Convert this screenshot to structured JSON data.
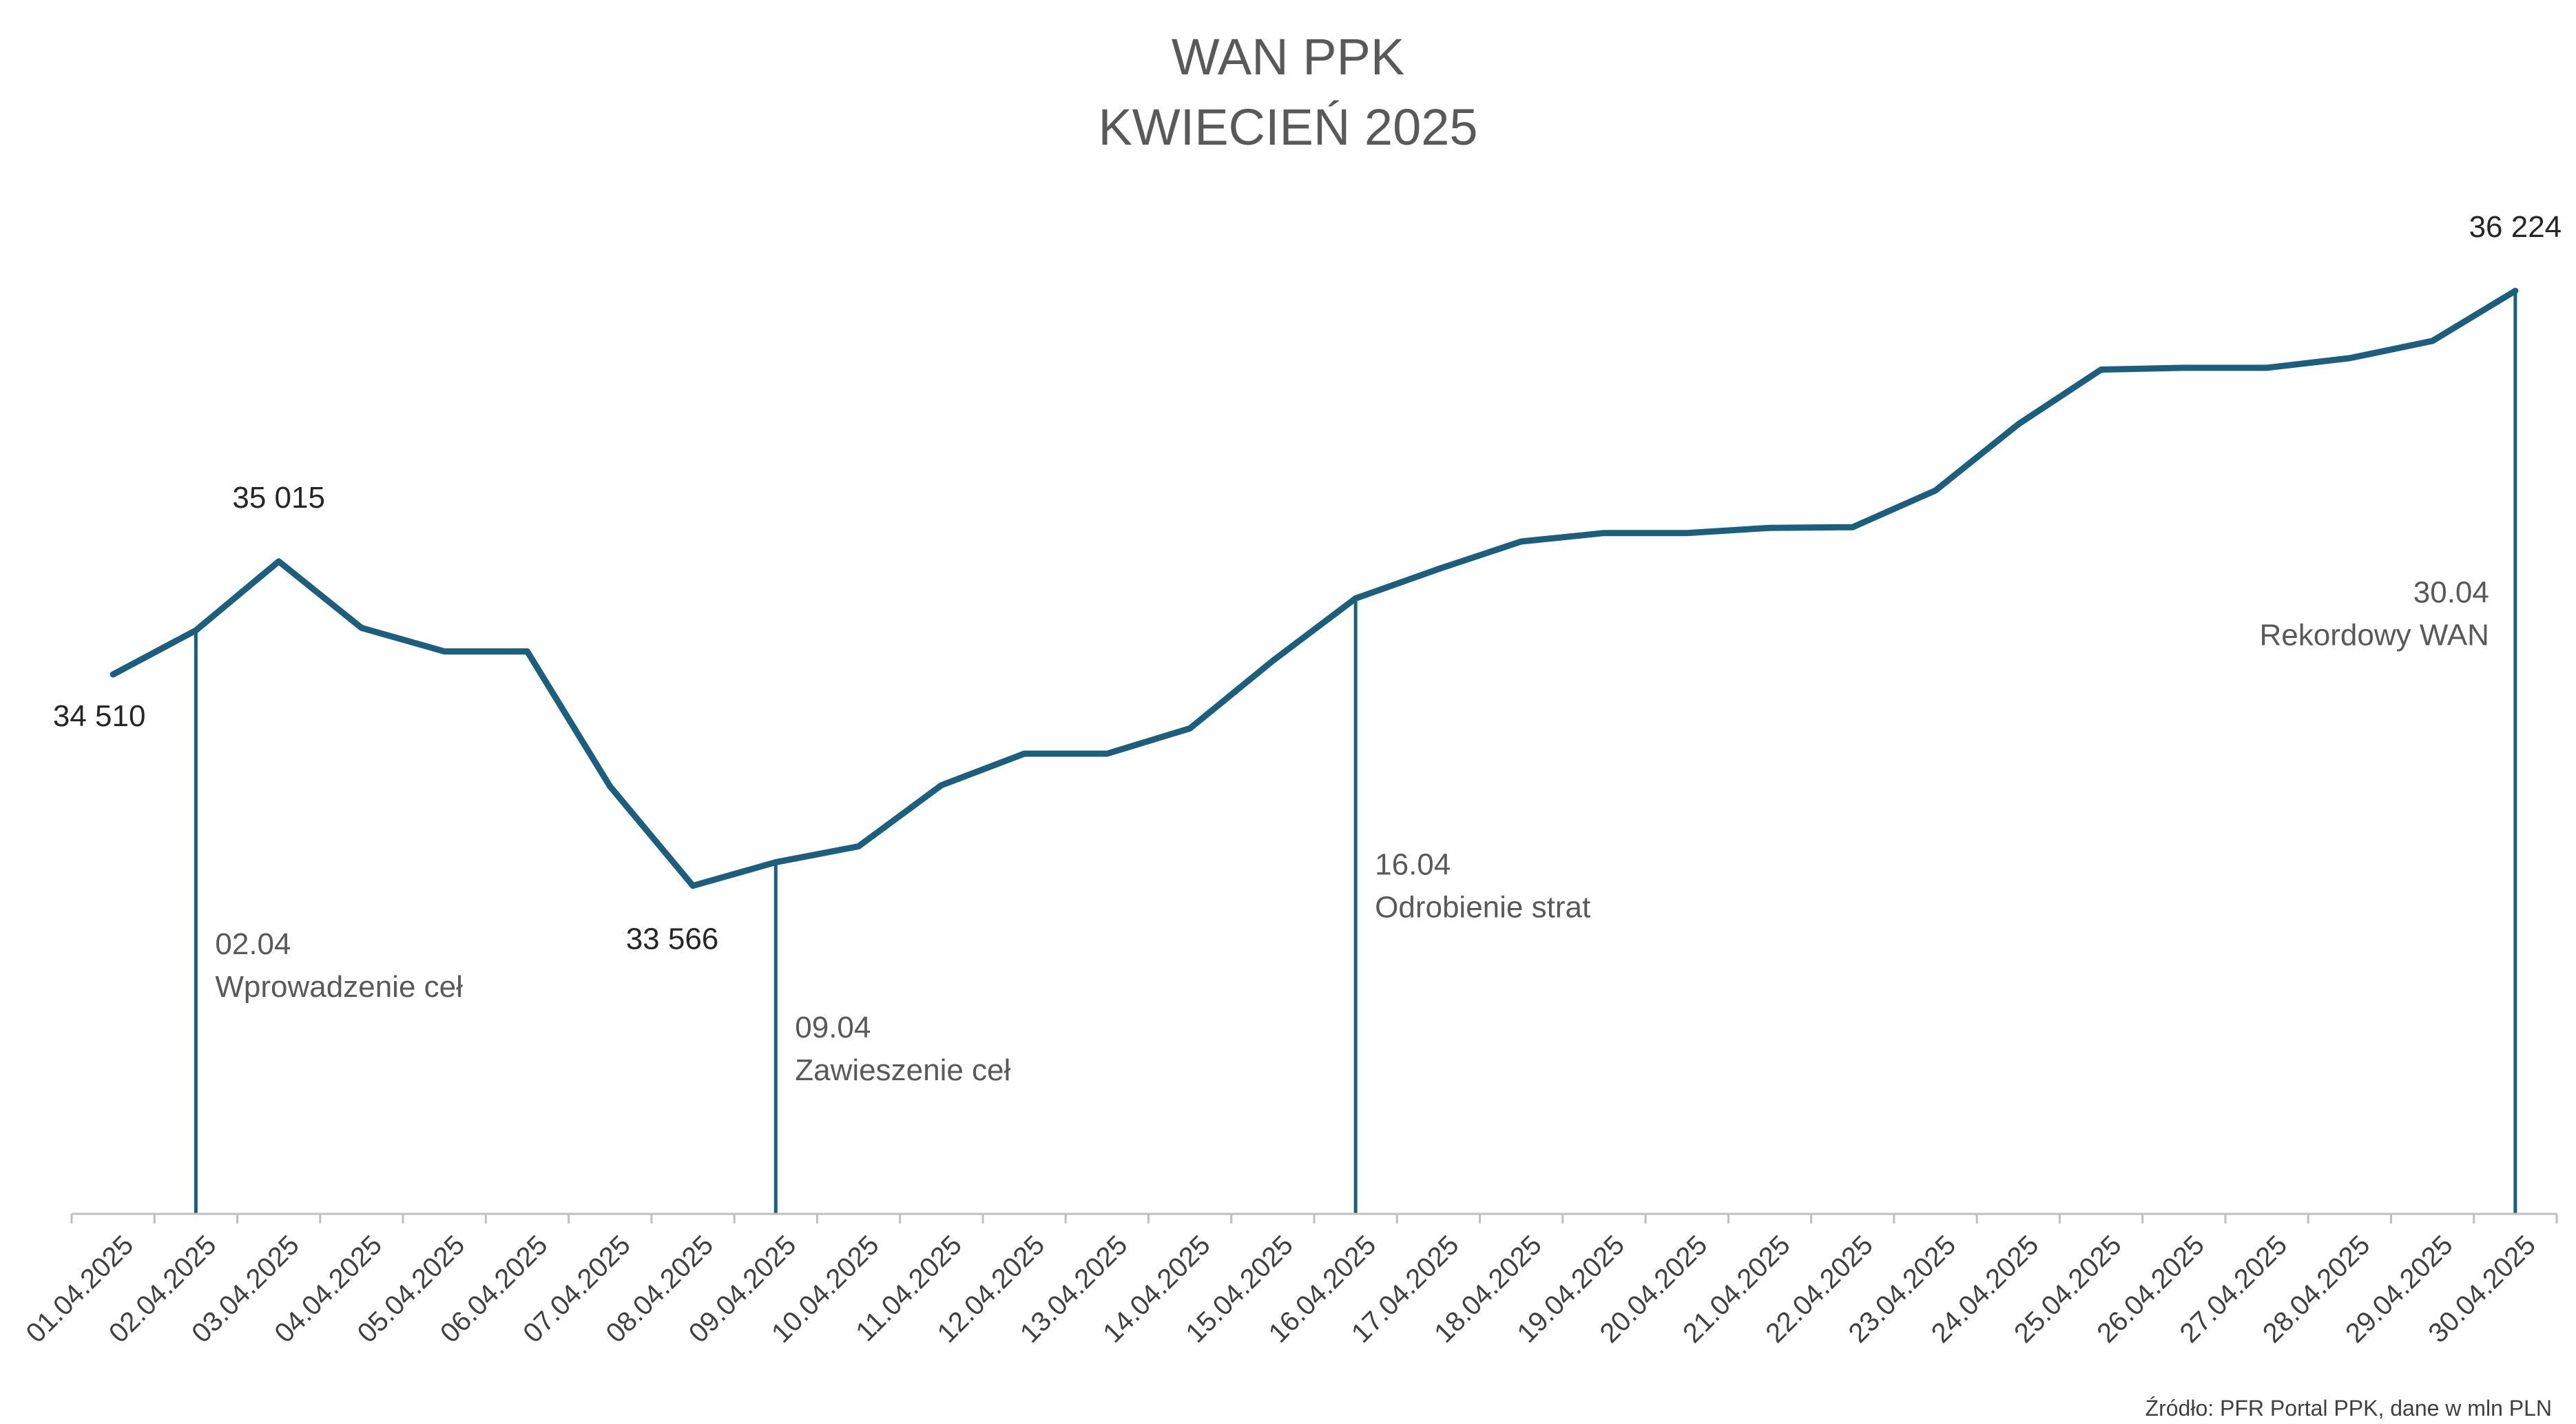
{
  "chart_data": {
    "type": "line",
    "title": [
      "WAN PPK",
      "KWIECIEŃ 2025"
    ],
    "source": "Źródło: PFR Portal PPK, dane w mln PLN",
    "color": "#1b5e7d",
    "categories": [
      "01.04.2025",
      "02.04.2025",
      "03.04.2025",
      "04.04.2025",
      "05.04.2025",
      "06.04.2025",
      "07.04.2025",
      "08.04.2025",
      "09.04.2025",
      "10.04.2025",
      "11.04.2025",
      "12.04.2025",
      "13.04.2025",
      "14.04.2025",
      "15.04.2025",
      "16.04.2025",
      "17.04.2025",
      "18.04.2025",
      "19.04.2025",
      "20.04.2025",
      "21.04.2025",
      "22.04.2025",
      "23.04.2025",
      "24.04.2025",
      "25.04.2025",
      "26.04.2025",
      "27.04.2025",
      "28.04.2025",
      "29.04.2025",
      "30.04.2025"
    ],
    "values": [
      34510,
      34707,
      35015,
      34718,
      34613,
      34613,
      34010,
      33566,
      33671,
      33742,
      34015,
      34156,
      34156,
      34269,
      34571,
      34850,
      34981,
      35104,
      35142,
      35142,
      35165,
      35168,
      35332,
      35628,
      35872,
      35880,
      35880,
      35923,
      36000,
      36224
    ],
    "ylim": [
      32100,
      36600
    ],
    "grid": false,
    "legend": "none",
    "point_labels": [
      {
        "index": 0,
        "text": "34 510",
        "pos": "below-left"
      },
      {
        "index": 2,
        "text": "35 015",
        "pos": "above"
      },
      {
        "index": 7,
        "text": "33 566",
        "pos": "below"
      },
      {
        "index": 29,
        "text": "36 224",
        "pos": "above"
      }
    ],
    "annotations": [
      {
        "index": 1,
        "date": "02.04",
        "text": "Wprowadzenie ceł",
        "side": "right",
        "level": 0.742
      },
      {
        "index": 8,
        "date": "09.04",
        "text": "Zawieszenie ceł",
        "side": "right",
        "level": 0.825
      },
      {
        "index": 15,
        "date": "16.04",
        "text": "Odrobienie strat",
        "side": "right",
        "level": 0.663
      },
      {
        "index": 29,
        "date": "30.04",
        "text": "Rekordowy WAN",
        "side": "left",
        "level": 0.393
      }
    ]
  }
}
